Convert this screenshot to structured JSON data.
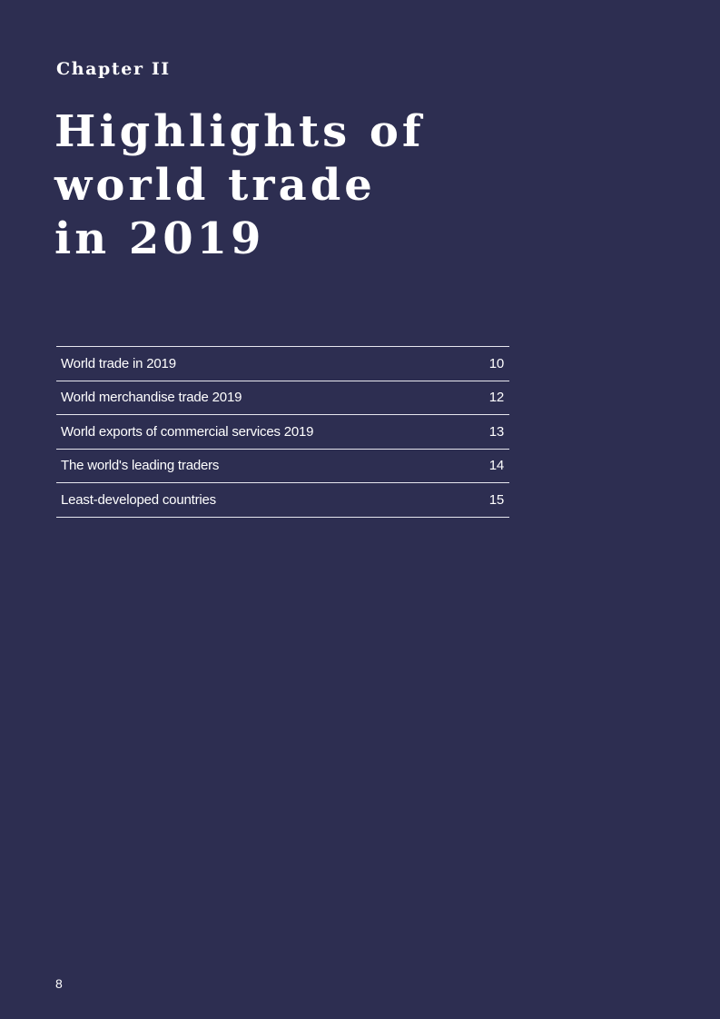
{
  "chapter": {
    "label": "Chapter II",
    "title_lines": [
      "Highlights of",
      "world trade",
      "in 2019"
    ]
  },
  "toc": [
    {
      "title": "World trade in 2019",
      "page": "10"
    },
    {
      "title": "World merchandise trade 2019",
      "page": "12"
    },
    {
      "title": "World exports of commercial services 2019",
      "page": "13"
    },
    {
      "title": "The world's leading traders",
      "page": "14"
    },
    {
      "title": "Least-developed countries",
      "page": "15"
    }
  ],
  "footer": {
    "page_number": "8"
  }
}
